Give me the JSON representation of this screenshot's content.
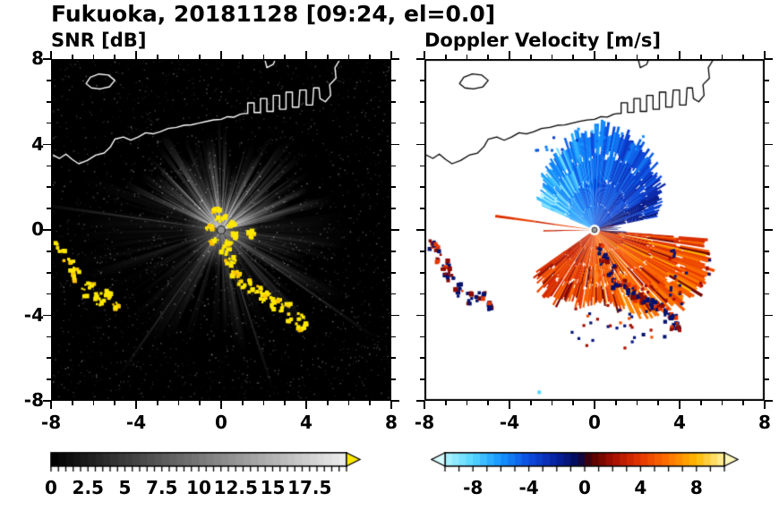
{
  "header": {
    "title": "Fukuoka, 20181128 [09:24, el=0.0]"
  },
  "panels": [
    {
      "id": "snr",
      "title": "SNR [dB]",
      "axis": {
        "xlim": [
          -8,
          8
        ],
        "ylim": [
          -8,
          8
        ],
        "major_ticks": [
          -8,
          -4,
          0,
          4,
          8
        ],
        "minor_step": 1,
        "show_y_labels": true
      },
      "colorbar": {
        "min": 0,
        "max": 20,
        "labels": [
          "0",
          "2.5",
          "5",
          "7.5",
          "10",
          "12.5",
          "15",
          "17.5"
        ],
        "label_values": [
          0,
          2.5,
          5,
          7.5,
          10,
          12.5,
          15,
          17.5
        ],
        "minor_tick_step": 0.5,
        "extend": "max",
        "over_color": "#ffe800"
      }
    },
    {
      "id": "doppler",
      "title": "Doppler Velocity [m/s]",
      "axis": {
        "xlim": [
          -8,
          8
        ],
        "ylim": [
          -8,
          8
        ],
        "major_ticks": [
          -8,
          -4,
          0,
          4,
          8
        ],
        "minor_step": 1,
        "show_y_labels": false
      },
      "colorbar": {
        "min": -10,
        "max": 10,
        "labels": [
          "-8",
          "-4",
          "0",
          "4",
          "8"
        ],
        "label_values": [
          -8,
          -4,
          0,
          4,
          8
        ],
        "minor_tick_step": 1,
        "extend": "both",
        "under_color": "#d8fbff",
        "over_color": "#fff7bc"
      }
    }
  ],
  "coastline_paths": [
    [
      [
        -8.0,
        3.55
      ],
      [
        -7.6,
        3.35
      ],
      [
        -7.3,
        3.55
      ],
      [
        -7.0,
        3.3
      ],
      [
        -6.7,
        3.1
      ],
      [
        -6.3,
        3.25
      ],
      [
        -5.9,
        3.5
      ],
      [
        -5.5,
        3.6
      ],
      [
        -5.2,
        3.9
      ],
      [
        -5.0,
        4.25
      ],
      [
        -4.6,
        4.35
      ],
      [
        -4.25,
        4.2
      ],
      [
        -3.9,
        4.35
      ],
      [
        -3.55,
        4.55
      ],
      [
        -3.2,
        4.5
      ],
      [
        -2.85,
        4.6
      ],
      [
        -2.5,
        4.75
      ],
      [
        -2.1,
        4.8
      ],
      [
        -1.75,
        4.9
      ],
      [
        -1.4,
        4.92
      ],
      [
        -1.05,
        5.0
      ],
      [
        -0.7,
        5.08
      ],
      [
        -0.35,
        5.15
      ],
      [
        0.0,
        5.18
      ],
      [
        0.3,
        5.3
      ],
      [
        0.6,
        5.28
      ],
      [
        0.9,
        5.42
      ],
      [
        1.1,
        5.45
      ],
      [
        1.25,
        5.45
      ],
      [
        1.25,
        5.95
      ],
      [
        1.55,
        5.95
      ],
      [
        1.55,
        5.5
      ],
      [
        1.85,
        5.5
      ],
      [
        1.85,
        6.15
      ],
      [
        2.15,
        6.15
      ],
      [
        2.15,
        5.55
      ],
      [
        2.45,
        5.55
      ],
      [
        2.45,
        6.3
      ],
      [
        2.75,
        6.3
      ],
      [
        2.75,
        5.65
      ],
      [
        3.05,
        5.65
      ],
      [
        3.05,
        6.45
      ],
      [
        3.35,
        6.45
      ],
      [
        3.35,
        5.75
      ],
      [
        3.65,
        5.75
      ],
      [
        3.7,
        6.55
      ],
      [
        4.0,
        6.55
      ],
      [
        4.0,
        5.85
      ],
      [
        4.3,
        5.85
      ],
      [
        4.35,
        6.65
      ],
      [
        4.6,
        6.65
      ],
      [
        4.65,
        6.15
      ],
      [
        4.9,
        6.0
      ],
      [
        5.15,
        6.3
      ],
      [
        5.1,
        6.8
      ],
      [
        5.4,
        7.1
      ],
      [
        5.35,
        7.6
      ],
      [
        5.6,
        8.0
      ]
    ],
    [
      [
        -6.35,
        6.85
      ],
      [
        -6.15,
        7.15
      ],
      [
        -5.75,
        7.3
      ],
      [
        -5.3,
        7.25
      ],
      [
        -5.0,
        7.0
      ],
      [
        -5.25,
        6.7
      ],
      [
        -5.7,
        6.6
      ],
      [
        -6.1,
        6.65
      ],
      [
        -6.35,
        6.85
      ]
    ],
    [
      [
        2.05,
        8.0
      ],
      [
        2.15,
        7.6
      ],
      [
        2.45,
        7.75
      ],
      [
        2.55,
        8.0
      ]
    ]
  ],
  "chart_data": [
    {
      "type": "heatmap",
      "panel": "left",
      "title": "SNR [dB]",
      "units": "dB",
      "xlim": [
        -8,
        8
      ],
      "ylim": [
        -8,
        8
      ],
      "value_range": [
        0,
        20
      ],
      "colormap": "grayscale",
      "background": "#000000",
      "coastline_color": "#ffffff",
      "radar_center": [
        0,
        0
      ],
      "beam_sectors": [
        {
          "az_start": -65,
          "az_end": 78,
          "intensity": "high",
          "max_range": 5.5
        },
        {
          "az_start": 78,
          "az_end": 95,
          "intensity": "low",
          "max_range": 9
        },
        {
          "az_start": 95,
          "az_end": 140,
          "intensity": "medium",
          "max_range": 7
        },
        {
          "az_start": 140,
          "az_end": 235,
          "intensity": "medium-low",
          "max_range": 6.5
        },
        {
          "az_start": 235,
          "az_end": 295,
          "intensity": "low",
          "max_range": 9
        }
      ],
      "notable_rays": [
        {
          "az": 278,
          "range": 9
        },
        {
          "az": 215,
          "range": 8.5
        },
        {
          "az": 125,
          "range": 9
        },
        {
          "az": 162,
          "range": 8
        }
      ],
      "clutter_color": "#ffe800",
      "clutter_island_patches": [
        [
          -7.55,
          -0.85,
          0.22,
          0.4,
          25
        ],
        [
          -7.2,
          -1.45,
          0.28,
          0.55,
          30
        ],
        [
          -6.85,
          -2.05,
          0.22,
          0.38,
          15
        ],
        [
          -6.25,
          -2.85,
          0.33,
          0.45,
          -20
        ],
        [
          -5.75,
          -3.25,
          0.28,
          0.32,
          0
        ],
        [
          -5.3,
          -3.05,
          0.18,
          0.22,
          0
        ],
        [
          -4.95,
          -3.55,
          0.14,
          0.18,
          0
        ]
      ],
      "clutter_shore_patches": [
        [
          0.2,
          -0.95,
          0.18,
          0.28,
          -40
        ],
        [
          0.45,
          -1.45,
          0.22,
          0.32,
          -40
        ],
        [
          0.75,
          -1.95,
          0.26,
          0.36,
          -40
        ],
        [
          1.15,
          -2.45,
          0.28,
          0.38,
          -45
        ],
        [
          1.6,
          -2.85,
          0.3,
          0.36,
          -55
        ],
        [
          2.1,
          -3.15,
          0.28,
          0.32,
          -60
        ],
        [
          2.6,
          -3.45,
          0.3,
          0.36,
          -60
        ],
        [
          3.1,
          -3.75,
          0.28,
          0.36,
          -55
        ],
        [
          3.5,
          -4.15,
          0.26,
          0.4,
          -65
        ],
        [
          3.8,
          -4.55,
          0.18,
          0.28,
          -70
        ]
      ],
      "clutter_center_patches": [
        [
          0.0,
          0.55,
          0.3,
          0.18,
          0
        ],
        [
          0.5,
          0.3,
          0.22,
          0.15,
          30
        ],
        [
          0.65,
          -0.25,
          0.2,
          0.16,
          0
        ],
        [
          0.3,
          -0.6,
          0.24,
          0.16,
          -20
        ],
        [
          -0.35,
          -0.5,
          0.22,
          0.15,
          10
        ],
        [
          -0.55,
          0.1,
          0.18,
          0.14,
          0
        ],
        [
          1.4,
          -0.2,
          0.22,
          0.16,
          0
        ],
        [
          -0.2,
          0.9,
          0.18,
          0.12,
          0
        ]
      ],
      "description": "Radar PPI scan of signal-to-noise ratio over Fukuoka; bright beam fan to the north, yellow strong ground-clutter echoes along the coast and islands, white coastline overlay on black noisy background."
    },
    {
      "type": "heatmap",
      "panel": "right",
      "title": "Doppler Velocity [m/s]",
      "units": "m/s",
      "xlim": [
        -8,
        8
      ],
      "ylim": [
        -8,
        8
      ],
      "value_range": [
        -10,
        10
      ],
      "background": "#ffffff",
      "coastline_color": "#000000",
      "colormap_stops": [
        [
          -10,
          "#b0f4ff"
        ],
        [
          -8,
          "#55d5ff"
        ],
        [
          -6,
          "#1495ff"
        ],
        [
          -4,
          "#0b4ce0"
        ],
        [
          -2,
          "#071f9e"
        ],
        [
          -0.4,
          "#03094e"
        ],
        [
          0.4,
          "#4a0000"
        ],
        [
          2,
          "#a50e00"
        ],
        [
          4,
          "#e63600"
        ],
        [
          6,
          "#ff7300"
        ],
        [
          8,
          "#ffb900"
        ],
        [
          10,
          "#fff2a0"
        ]
      ],
      "inbound_fan": {
        "az_start": -65,
        "az_end": 78,
        "max_range": 4.6,
        "velocity_range": [
          -9,
          -1
        ]
      },
      "outbound_fan": {
        "az_start": 95,
        "az_end": 235,
        "max_range": 5.6,
        "velocity_range": [
          1,
          8
        ]
      },
      "outbound_rays": [
        {
          "az": 278,
          "range": 4.7,
          "velocity": 4
        },
        {
          "az": 269,
          "range": 2.4,
          "velocity": 3
        }
      ],
      "isolated_specks": [
        [
          -2.6,
          -7.6,
          -8
        ],
        [
          3.3,
          -5.0,
          -1
        ],
        [
          4.0,
          -4.7,
          2
        ],
        [
          2.3,
          -4.9,
          -1
        ]
      ],
      "description": "Doppler velocity PPI: negative (blue, toward radar) fan to the north, positive (red-orange, away) fan to the south and east, dark navy echoes over coastal islands, black coastline overlay on white background."
    }
  ]
}
